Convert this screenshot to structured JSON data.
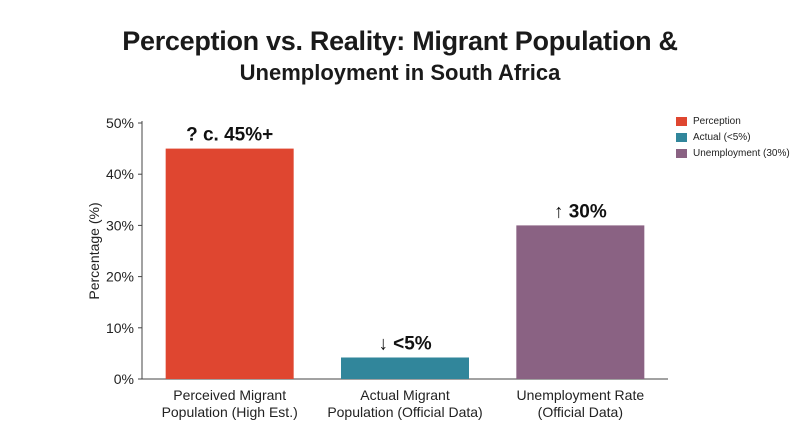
{
  "title": "Perception vs. Reality: Migrant Population &",
  "subtitle": "Unemployment in South Africa",
  "chart_data": {
    "type": "bar",
    "categories": [
      [
        "Perceived Migrant",
        "Population (High Est.)"
      ],
      [
        "Actual Migrant",
        "Population (Official Data)"
      ],
      [
        "Unemployment Rate",
        "(Official Data)"
      ]
    ],
    "values": [
      45,
      4.2,
      30
    ],
    "value_labels": [
      "? c. 45%+",
      "↓ <5%",
      "↑ 30%"
    ],
    "colors": [
      "#df4630",
      "#31869b",
      "#8a6283"
    ],
    "ylabel": "Percentage (%)",
    "ylim": [
      0,
      50
    ],
    "yticks": [
      "0%",
      "10%",
      "20%",
      "30%",
      "40%",
      "50%"
    ],
    "grid": false,
    "legend": {
      "placement": "top-right",
      "entries": [
        {
          "label": "Perception",
          "color": "#df4630"
        },
        {
          "label": "Actual (<5%)",
          "color": "#31869b"
        },
        {
          "label": "Unemployment (30%)",
          "color": "#8a6283"
        }
      ]
    }
  }
}
